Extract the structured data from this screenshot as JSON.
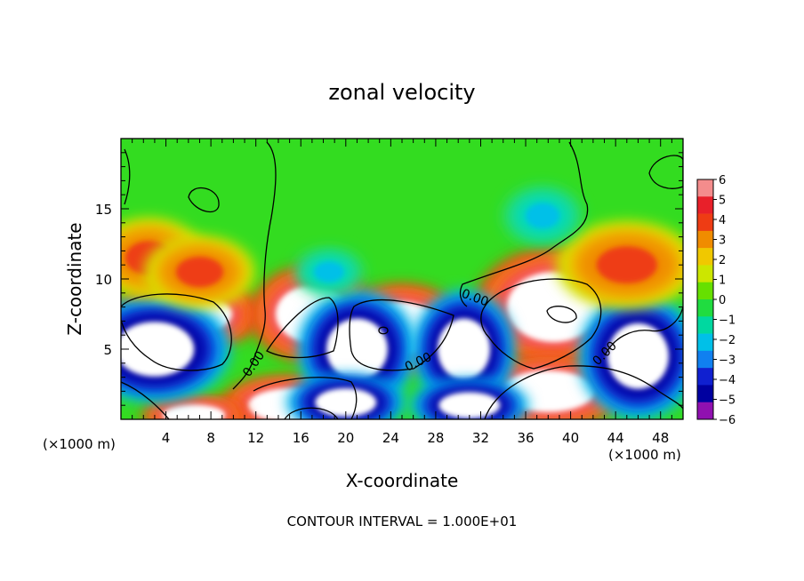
{
  "chart_data": {
    "type": "heatmap",
    "title": "zonal velocity",
    "xlabel": "X-coordinate",
    "ylabel": "Z-coordinate",
    "x_unit": "(×1000 m)",
    "z_unit": "(×1000 m)",
    "xlim": [
      0,
      50
    ],
    "ylim": [
      0,
      20
    ],
    "x_ticks": [
      "4",
      "8",
      "12",
      "16",
      "20",
      "24",
      "28",
      "32",
      "36",
      "40",
      "44",
      "48"
    ],
    "z_ticks": [
      "5",
      "10",
      "15"
    ],
    "footer": "CONTOUR INTERVAL = 1.000E+01",
    "contour_labels": [
      "0.00",
      "0.00",
      "0.00",
      "0.00"
    ],
    "colorbar": {
      "levels": [
        "6",
        "5",
        "4",
        "3",
        "2",
        "1",
        "0",
        "−1",
        "−2",
        "−3",
        "−4",
        "−5",
        "−6"
      ],
      "colors": [
        "#f48c8c",
        "#e8202a",
        "#ee3c14",
        "#f08c00",
        "#f0c800",
        "#cce600",
        "#66e000",
        "#20dc40",
        "#00d8a0",
        "#00c0e8",
        "#1080f0",
        "#1020d0",
        "#0000a0",
        "#9010b0"
      ]
    },
    "regions": [
      {
        "kind": "positive",
        "x": 6.0,
        "z": 7.5,
        "rx": 4.2,
        "rz": 1.6
      },
      {
        "kind": "positive",
        "x": 17.0,
        "z": 7.5,
        "rx": 3.5,
        "rz": 2.2
      },
      {
        "kind": "positive",
        "x": 25.0,
        "z": 6.5,
        "rx": 3.6,
        "rz": 2.0
      },
      {
        "kind": "positive",
        "x": 38.5,
        "z": 8.0,
        "rx": 4.5,
        "rz": 2.7
      },
      {
        "kind": "positive",
        "x": 15.0,
        "z": 1.0,
        "rx": 4.0,
        "rz": 1.3
      },
      {
        "kind": "positive",
        "x": 38.0,
        "z": 2.0,
        "rx": 4.5,
        "rz": 1.6
      },
      {
        "kind": "positive",
        "x": 6.5,
        "z": 0.3,
        "rx": 3.0,
        "rz": 0.8
      },
      {
        "kind": "negative",
        "x": 3.0,
        "z": 5.0,
        "rx": 4.5,
        "rz": 2.5
      },
      {
        "kind": "negative",
        "x": 21.0,
        "z": 5.0,
        "rx": 3.5,
        "rz": 2.8
      },
      {
        "kind": "negative",
        "x": 30.5,
        "z": 5.0,
        "rx": 3.0,
        "rz": 2.8
      },
      {
        "kind": "negative",
        "x": 46.0,
        "z": 4.5,
        "rx": 3.5,
        "rz": 3.0
      },
      {
        "kind": "negative",
        "x": 20.0,
        "z": 1.2,
        "rx": 3.5,
        "rz": 1.3
      },
      {
        "kind": "negative",
        "x": 31.0,
        "z": 1.0,
        "rx": 3.5,
        "rz": 1.2
      },
      {
        "kind": "orange",
        "x": 2.5,
        "z": 11.5,
        "rx": 3.5,
        "rz": 2.0
      },
      {
        "kind": "orange",
        "x": 7.0,
        "z": 10.5,
        "rx": 3.5,
        "rz": 1.8
      },
      {
        "kind": "orange",
        "x": 45.0,
        "z": 11.0,
        "rx": 4.5,
        "rz": 2.2
      },
      {
        "kind": "cyan",
        "x": 37.5,
        "z": 14.5,
        "rx": 2.5,
        "rz": 1.5
      },
      {
        "kind": "cyan",
        "x": 18.5,
        "z": 10.5,
        "rx": 2.2,
        "rz": 1.2
      }
    ]
  }
}
